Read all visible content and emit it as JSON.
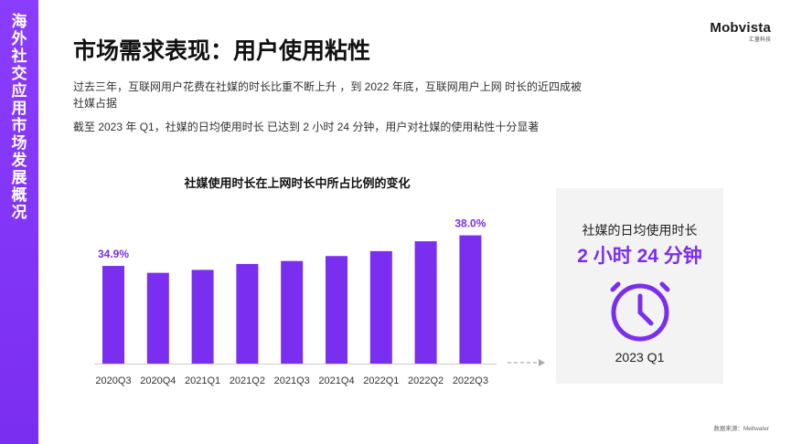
{
  "sidebar": {
    "title_chars": [
      "海",
      "外",
      "社",
      "交",
      "应",
      "用",
      "市",
      "场",
      "发",
      "展",
      "概",
      "况"
    ]
  },
  "brand": {
    "name": "Mobvista",
    "sub": "汇量科技"
  },
  "page_title": "市场需求表现：用户使用粘性",
  "paragraphs": [
    "过去三年，互联网用户花费在社媒的时长比重不断上升 ，到 2022 年底，互联网用户上网 时长的近四成被社媒占据",
    "截至 2023 年 Q1，社媒的日均使用时长 已达到 2 小时 24 分钟，用户对社媒的使用粘性十分显著"
  ],
  "chart_data": {
    "type": "bar",
    "title": "社媒使用时长在上网时长中所占比例的变化",
    "categories": [
      "2020Q3",
      "2020Q4",
      "2021Q1",
      "2021Q2",
      "2021Q3",
      "2021Q4",
      "2022Q1",
      "2022Q2",
      "2022Q3"
    ],
    "values": [
      34.9,
      34.2,
      34.5,
      35.1,
      35.4,
      35.9,
      36.4,
      37.4,
      38.0
    ],
    "data_labels": [
      "34.9%",
      "",
      "",
      "",
      "",
      "",
      "",
      "",
      "38.0%"
    ],
    "ylim": [
      25,
      40
    ],
    "grid": false,
    "bar_color": "#7a2ef0",
    "label_color": "#7a2ef0"
  },
  "watermark": {
    "name": "Mobvista",
    "sub": "汇量科技"
  },
  "stat_card": {
    "label": "社媒的日均使用时长",
    "value": "2 小时 24 分钟",
    "icon": "clock-icon",
    "period": "2023 Q1"
  },
  "source": "数据来源：Meltwater",
  "colors": {
    "accent": "#7a2ef0",
    "band": "#8b3dff"
  }
}
